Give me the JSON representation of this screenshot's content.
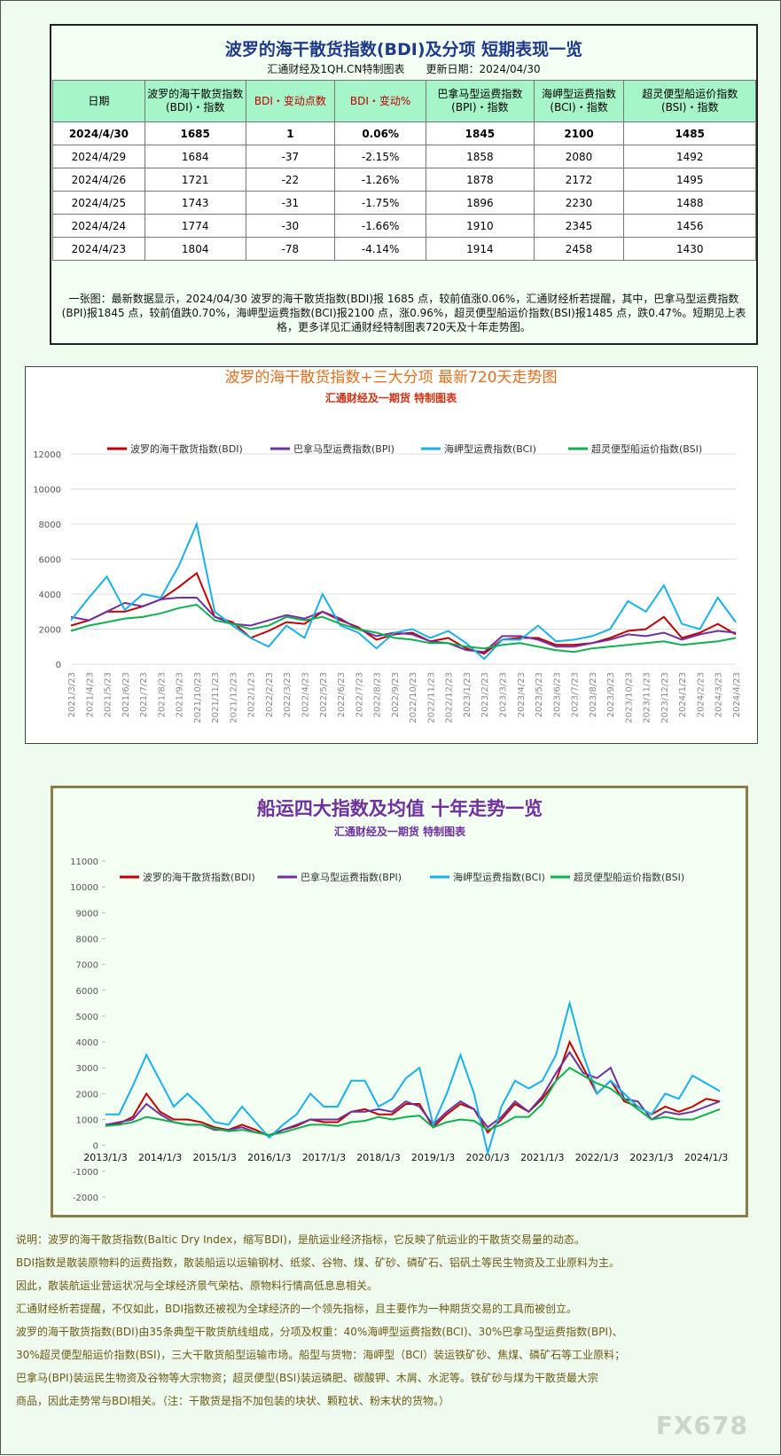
{
  "header": {
    "title": "波罗的海干散货指数(BDI)及分项 短期表现一览",
    "subtitle": "汇通财经及1QH.CN特制图表　　更新日期：2024/04/30"
  },
  "table": {
    "columns": [
      [
        "日期"
      ],
      [
        "波罗的海干散货指数",
        "(BDI)・指数"
      ],
      [
        "BDI・变动点数"
      ],
      [
        "BDI・变动%"
      ],
      [
        "巴拿马型运费指数",
        "(BPI)・指数"
      ],
      [
        "海岬型运费指数",
        "(BCI)・指数"
      ],
      [
        "超灵便型船运价指数",
        "(BSI)・指数"
      ]
    ],
    "rows": [
      [
        "2024/4/30",
        "1685",
        "1",
        "0.06%",
        "1845",
        "2100",
        "1485"
      ],
      [
        "2024/4/29",
        "1684",
        "-37",
        "-2.15%",
        "1858",
        "2080",
        "1492"
      ],
      [
        "2024/4/26",
        "1721",
        "-22",
        "-1.26%",
        "1878",
        "2172",
        "1495"
      ],
      [
        "2024/4/25",
        "1743",
        "-31",
        "-1.75%",
        "1896",
        "2230",
        "1488"
      ],
      [
        "2024/4/24",
        "1774",
        "-30",
        "-1.66%",
        "1910",
        "2345",
        "1456"
      ],
      [
        "2024/4/23",
        "1804",
        "-78",
        "-4.14%",
        "1914",
        "2458",
        "1430"
      ]
    ]
  },
  "note": "一张图：最新数据显示，2024/04/30 波罗的海干散货指数(BDI)报 1685 点，较前值涨0.06%，汇通财经析若提醒，其中，巴拿马型运费指数(BPI)报1845 点，较前值跌0.70%，海岬型运费指数(BCI)报2100 点，涨0.96%，超灵便型船运价指数(BSI)报1485 点，跌0.47%。短期见上表格，更多详见汇通财经特制图表720天及十年走势图。",
  "chart_data": [
    {
      "type": "line",
      "title": "波罗的海干散货指数+三大分项  最新720天走势图",
      "subtitle": "汇通财经及一期货  特制图表",
      "grid": true,
      "categories": [
        "2021/3/23",
        "2021/4/23",
        "2021/5/23",
        "2021/6/23",
        "2021/7/23",
        "2021/8/23",
        "2021/9/23",
        "2021/10/23",
        "2021/11/23",
        "2021/12/23",
        "2022/1/23",
        "2022/2/23",
        "2022/3/23",
        "2022/4/23",
        "2022/5/23",
        "2022/6/23",
        "2022/7/23",
        "2022/8/23",
        "2022/9/23",
        "2022/10/23",
        "2022/11/23",
        "2022/12/23",
        "2023/1/23",
        "2023/2/23",
        "2023/3/23",
        "2023/4/23",
        "2023/5/23",
        "2023/6/23",
        "2023/7/23",
        "2023/8/23",
        "2023/9/23",
        "2023/10/23",
        "2023/11/23",
        "2023/12/23",
        "2024/1/23",
        "2024/2/23",
        "2024/3/23",
        "2024/4/23"
      ],
      "ylim": [
        0,
        12000
      ],
      "yticks": [
        0,
        2000,
        4000,
        6000,
        8000,
        10000,
        12000
      ],
      "series": [
        {
          "name": "波罗的海干散货指数(BDI)",
          "color": "#c00000",
          "values": [
            2200,
            2500,
            3000,
            3000,
            3300,
            3700,
            4400,
            5200,
            2700,
            2400,
            1500,
            1900,
            2400,
            2300,
            3000,
            2500,
            2100,
            1400,
            1700,
            1800,
            1300,
            1500,
            900,
            600,
            1400,
            1500,
            1500,
            1100,
            1100,
            1200,
            1500,
            1900,
            2000,
            2700,
            1500,
            1800,
            2300,
            1700
          ]
        },
        {
          "name": "巴拿马型运费指数(BPI)",
          "color": "#7030a0",
          "values": [
            2700,
            2500,
            3000,
            3500,
            3300,
            3700,
            3800,
            3800,
            2700,
            2300,
            2200,
            2500,
            2800,
            2600,
            3000,
            2600,
            2000,
            1600,
            1800,
            1700,
            1300,
            1200,
            800,
            700,
            1600,
            1600,
            1400,
            1000,
            1000,
            1200,
            1400,
            1700,
            1600,
            1800,
            1400,
            1700,
            1900,
            1800
          ]
        },
        {
          "name": "海岬型运费指数(BCI)",
          "color": "#1ab0e8",
          "values": [
            2500,
            3800,
            5000,
            3100,
            4000,
            3800,
            5600,
            8000,
            3000,
            2200,
            1500,
            1000,
            2200,
            1500,
            4000,
            2200,
            1800,
            900,
            1800,
            2000,
            1500,
            1900,
            1200,
            300,
            1400,
            1400,
            2200,
            1300,
            1400,
            1600,
            2000,
            3600,
            3000,
            4500,
            2300,
            2000,
            3800,
            2400
          ]
        },
        {
          "name": "超灵便型船运价指数(BSI)",
          "color": "#10b050",
          "values": [
            1900,
            2200,
            2400,
            2600,
            2700,
            2900,
            3200,
            3400,
            2500,
            2300,
            2000,
            2200,
            2700,
            2500,
            2700,
            2300,
            2000,
            1800,
            1500,
            1400,
            1200,
            1200,
            1000,
            900,
            1100,
            1200,
            1000,
            800,
            700,
            900,
            1000,
            1100,
            1200,
            1300,
            1100,
            1200,
            1300,
            1500
          ]
        }
      ]
    },
    {
      "type": "line",
      "title": "船运四大指数及均值 十年走势一览",
      "subtitle": "汇通财经及一期货 特制图表",
      "grid": false,
      "categories": [
        "2013/1/3",
        null,
        null,
        null,
        "2014/1/3",
        null,
        null,
        null,
        "2015/1/3",
        null,
        null,
        null,
        "2016/1/3",
        null,
        null,
        null,
        "2017/1/3",
        null,
        null,
        null,
        "2018/1/3",
        null,
        null,
        null,
        "2019/1/3",
        null,
        null,
        null,
        "2020/1/3",
        null,
        null,
        null,
        "2021/1/3",
        null,
        null,
        null,
        "2022/1/3",
        null,
        null,
        null,
        "2023/1/3",
        null,
        null,
        null,
        "2024/1/3",
        null
      ],
      "ylim": [
        -2000,
        11000
      ],
      "yticks": [
        -2000,
        -1000,
        0,
        1000,
        2000,
        3000,
        4000,
        5000,
        6000,
        7000,
        8000,
        9000,
        10000,
        11000
      ],
      "series": [
        {
          "name": "波罗的海干散货指数(BDI)",
          "color": "#c00000",
          "values": [
            750,
            850,
            1100,
            2000,
            1300,
            1000,
            1000,
            900,
            700,
            600,
            800,
            600,
            350,
            600,
            750,
            1000,
            900,
            900,
            1300,
            1400,
            1200,
            1200,
            1600,
            1600,
            700,
            1200,
            1600,
            1400,
            500,
            1000,
            1600,
            1300,
            1800,
            2500,
            4000,
            3000,
            2000,
            2500,
            1700,
            1500,
            1200,
            1500,
            1300,
            1500,
            1800,
            1700
          ]
        },
        {
          "name": "巴拿马型运费指数(BPI)",
          "color": "#7030a0",
          "values": [
            800,
            900,
            1000,
            1600,
            1200,
            900,
            800,
            800,
            600,
            600,
            700,
            500,
            400,
            600,
            800,
            1000,
            1000,
            1000,
            1300,
            1300,
            1400,
            1300,
            1700,
            1500,
            800,
            1300,
            1700,
            1400,
            700,
            1100,
            1700,
            1300,
            1900,
            2800,
            3600,
            2800,
            2600,
            3000,
            1800,
            1700,
            1000,
            1300,
            1200,
            1300,
            1500,
            1700
          ]
        },
        {
          "name": "海岬型运费指数(BCI)",
          "color": "#1ab0e8",
          "values": [
            1200,
            1200,
            2300,
            3500,
            2500,
            1500,
            2000,
            1500,
            900,
            800,
            1500,
            900,
            300,
            800,
            1200,
            2000,
            1500,
            1500,
            2500,
            2500,
            1500,
            1800,
            2600,
            3000,
            800,
            2000,
            3500,
            2000,
            -300,
            1500,
            2500,
            2200,
            2500,
            3500,
            5500,
            3500,
            2000,
            2500,
            2000,
            1500,
            1200,
            2000,
            1800,
            2700,
            2400,
            2100
          ]
        },
        {
          "name": "超灵便型船运价指数(BSI)",
          "color": "#10b050",
          "values": [
            750,
            800,
            900,
            1100,
            1000,
            900,
            800,
            800,
            650,
            550,
            600,
            500,
            400,
            500,
            650,
            800,
            800,
            750,
            900,
            950,
            1100,
            1000,
            1100,
            1150,
            700,
            900,
            1000,
            950,
            600,
            800,
            1100,
            1100,
            1600,
            2500,
            3000,
            2700,
            2400,
            2200,
            1800,
            1400,
            1000,
            1100,
            1000,
            1000,
            1200,
            1400
          ]
        }
      ]
    }
  ],
  "explanation": [
    "说明：波罗的海干散货指数(Baltic Dry Index，缩写BDI)，是航运业经济指标，它反映了航运业的干散货交易量的动态。",
    "BDI指数是散装原物料的运费指数，散装船运以运输钢材、纸浆、谷物、煤、矿砂、磷矿石、铝矾土等民生物资及工业原料为主。",
    "因此，散装航运业营运状况与全球经济景气荣枯、原物料行情高低息息相关。",
    "汇通财经析若提醒，不仅如此，BDI指数还被视为全球经济的一个领先指标，且主要作为一种期货交易的工具而被创立。",
    "波罗的海干散货指数(BDI)由35条典型干散货航线组成，分项及权重：40%海岬型运费指数(BCI)、30%巴拿马型运费指数(BPI)、",
    "30%超灵便型船运价指数(BSI)，三大干散货船型运输市场。船型与货物：海岬型（BCI）装运铁矿砂、焦煤、磷矿石等工业原料；",
    "巴拿马(BPI)装运民生物资及谷物等大宗物资；超灵便型(BSI)装运磷肥、碳酸钾、木屑、水泥等。铁矿砂与煤为干散货最大宗",
    "商品，因此走势常与BDI相关。（注：干散货是指不加包装的块状、颗粒状、粉末状的货物。）"
  ],
  "logo": "FX678"
}
